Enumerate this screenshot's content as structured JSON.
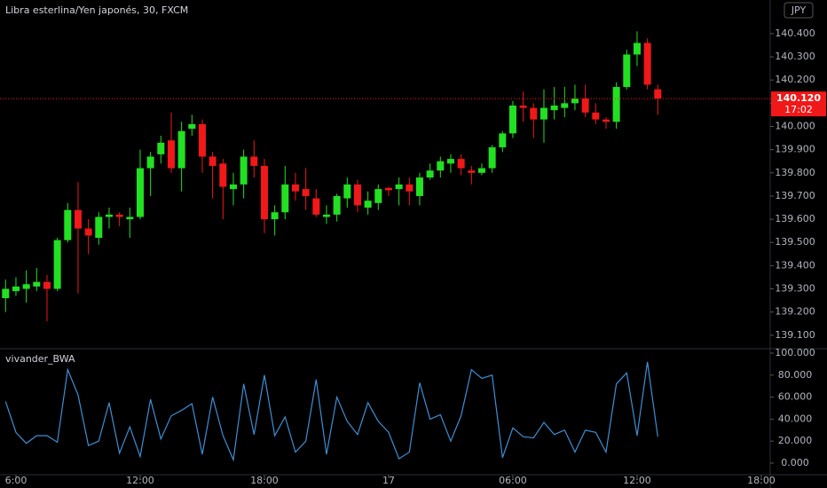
{
  "chart_data": [
    {
      "type": "candlestick",
      "title": "Libra esterlina/Yen japonés, 30, FXCM",
      "x": [
        5.5,
        6,
        6.5,
        7,
        7.5,
        8,
        8.5,
        9,
        9.5,
        10,
        10.5,
        11,
        11.5,
        12,
        12.5,
        13,
        13.5,
        14,
        14.5,
        15,
        15.5,
        16,
        16.5,
        17,
        17.5,
        18,
        18.5,
        19,
        19.5,
        20,
        20.5,
        21,
        21.5,
        22,
        22.5,
        23,
        23.5,
        24,
        24.5,
        25,
        25.5,
        26,
        26.5,
        27,
        27.5,
        28,
        28.5,
        29,
        29.5,
        30,
        30.5,
        31,
        31.5,
        32,
        32.5,
        33,
        33.5,
        34,
        34.5,
        35,
        35.5,
        36,
        36.5,
        37
      ],
      "open": [
        139.26,
        139.29,
        139.3,
        139.31,
        139.33,
        139.3,
        139.51,
        139.64,
        139.56,
        139.52,
        139.61,
        139.62,
        139.6,
        139.61,
        139.82,
        139.88,
        139.94,
        139.82,
        139.99,
        140.01,
        139.87,
        139.84,
        139.73,
        139.75,
        139.87,
        139.83,
        139.6,
        139.63,
        139.75,
        139.73,
        139.69,
        139.61,
        139.62,
        139.69,
        139.75,
        139.65,
        139.67,
        139.735,
        139.73,
        139.75,
        139.7,
        139.78,
        139.81,
        139.84,
        139.86,
        139.81,
        139.8,
        139.82,
        139.91,
        139.97,
        140.09,
        140.08,
        140.03,
        140.07,
        140.08,
        140.1,
        140.12,
        140.06,
        140.03,
        140.02,
        140.17,
        140.31,
        140.36,
        140.16
      ],
      "high": [
        139.34,
        139.35,
        139.38,
        139.39,
        139.36,
        139.52,
        139.67,
        139.76,
        139.6,
        139.63,
        139.65,
        139.63,
        139.65,
        139.9,
        139.89,
        139.96,
        140.06,
        140.02,
        140.05,
        140.03,
        139.89,
        139.86,
        139.8,
        139.9,
        139.94,
        139.86,
        139.66,
        139.83,
        139.8,
        139.82,
        139.73,
        139.66,
        139.71,
        139.78,
        139.77,
        139.72,
        139.75,
        139.74,
        139.78,
        139.78,
        139.8,
        139.84,
        139.87,
        139.88,
        139.88,
        139.83,
        139.84,
        139.92,
        139.98,
        140.11,
        140.15,
        140.1,
        140.16,
        140.17,
        140.17,
        140.18,
        140.18,
        140.1,
        140.04,
        140.19,
        140.33,
        140.41,
        140.38,
        140.18
      ],
      "low": [
        139.2,
        139.27,
        139.24,
        139.29,
        139.16,
        139.29,
        139.5,
        139.28,
        139.45,
        139.49,
        139.56,
        139.57,
        139.52,
        139.6,
        139.7,
        139.84,
        139.8,
        139.72,
        139.96,
        139.8,
        139.69,
        139.6,
        139.66,
        139.69,
        139.78,
        139.54,
        139.53,
        139.6,
        139.68,
        139.64,
        139.61,
        139.58,
        139.59,
        139.65,
        139.63,
        139.62,
        139.64,
        139.7,
        139.66,
        139.66,
        139.66,
        139.77,
        139.78,
        139.8,
        139.79,
        139.75,
        139.79,
        139.8,
        139.89,
        139.95,
        140.02,
        139.95,
        139.93,
        140.03,
        140.04,
        140.07,
        140.04,
        140.01,
        139.99,
        139.99,
        140.16,
        140.26,
        140.16,
        140.05
      ],
      "close": [
        139.3,
        139.31,
        139.32,
        139.33,
        139.3,
        139.51,
        139.64,
        139.56,
        139.53,
        139.61,
        139.62,
        139.61,
        139.61,
        139.82,
        139.87,
        139.93,
        139.82,
        139.98,
        140.01,
        139.87,
        139.83,
        139.74,
        139.75,
        139.87,
        139.83,
        139.6,
        139.63,
        139.75,
        139.72,
        139.7,
        139.62,
        139.62,
        139.7,
        139.75,
        139.66,
        139.68,
        139.73,
        139.725,
        139.75,
        139.72,
        139.78,
        139.81,
        139.85,
        139.86,
        139.82,
        139.8,
        139.82,
        139.91,
        139.97,
        140.09,
        140.08,
        140.03,
        140.08,
        140.09,
        140.1,
        140.12,
        140.06,
        140.03,
        140.02,
        140.17,
        140.31,
        140.36,
        140.18,
        140.12
      ],
      "up_color": "#22e022",
      "down_color": "#f01818",
      "xlim": [
        5.23,
        42.43
      ],
      "ylim": [
        139.042,
        140.545
      ],
      "yticks": [
        {
          "value": 139.1,
          "label": "139.100"
        },
        {
          "value": 139.2,
          "label": "139.200"
        },
        {
          "value": 139.3,
          "label": "139.300"
        },
        {
          "value": 139.4,
          "label": "139.400"
        },
        {
          "value": 139.5,
          "label": "139.500"
        },
        {
          "value": 139.6,
          "label": "139.600"
        },
        {
          "value": 139.7,
          "label": "139.700"
        },
        {
          "value": 139.8,
          "label": "139.800"
        },
        {
          "value": 139.9,
          "label": "139.900"
        },
        {
          "value": 140,
          "label": "140.000"
        },
        {
          "value": 140.1,
          "label": "140.100"
        },
        {
          "value": 140.2,
          "label": "140.200"
        },
        {
          "value": 140.3,
          "label": "140.300"
        },
        {
          "value": 140.4,
          "label": "140.400"
        }
      ],
      "last_price": {
        "value": 140.12,
        "label": "140.120"
      },
      "countdown": "17:02",
      "currency": "JPY"
    },
    {
      "type": "line",
      "title": "vivander_BWA",
      "x": [
        5.5,
        6,
        6.5,
        7,
        7.5,
        8,
        8.5,
        9,
        9.5,
        10,
        10.5,
        11,
        11.5,
        12,
        12.5,
        13,
        13.5,
        14,
        14.5,
        15,
        15.5,
        16,
        16.5,
        17,
        17.5,
        18,
        18.5,
        19,
        19.5,
        20,
        20.5,
        21,
        21.5,
        22,
        22.5,
        23,
        23.5,
        24,
        24.5,
        25,
        25.5,
        26,
        26.5,
        27,
        27.5,
        28,
        28.5,
        29,
        29.5,
        30,
        30.5,
        31,
        31.5,
        32,
        32.5,
        33,
        33.5,
        34,
        34.5,
        35,
        35.5,
        36,
        36.5,
        37
      ],
      "values": [
        56,
        28,
        18,
        25,
        25,
        19,
        85,
        62,
        16,
        20,
        55,
        9,
        33,
        6,
        58,
        22,
        43,
        48,
        54,
        8,
        60,
        25,
        3,
        72,
        26,
        80,
        25,
        42,
        10,
        20,
        76,
        8,
        60,
        38,
        26,
        55,
        38,
        28,
        4,
        10,
        73,
        40,
        44,
        20,
        43,
        85,
        77,
        80,
        5,
        32,
        24,
        23,
        37,
        26,
        30,
        10,
        30,
        28,
        10,
        72,
        82,
        25,
        92,
        24
      ],
      "color": "#3d8fd6",
      "xlim": [
        5.23,
        42.43
      ],
      "ylim": [
        -10.5,
        104
      ],
      "yticks": [
        {
          "value": 0,
          "label": "0.000"
        },
        {
          "value": 20,
          "label": "20.000"
        },
        {
          "value": 40,
          "label": "40.000"
        },
        {
          "value": 60,
          "label": "60.000"
        },
        {
          "value": 80,
          "label": "80.000"
        },
        {
          "value": 100,
          "label": "100.000"
        }
      ],
      "xticks": [
        {
          "value": 6,
          "label": "6:00"
        },
        {
          "value": 12,
          "label": "12:00"
        },
        {
          "value": 18,
          "label": "18:00"
        },
        {
          "value": 24,
          "label": "17"
        },
        {
          "value": 30,
          "label": "06:00"
        },
        {
          "value": 36,
          "label": "12:00"
        },
        {
          "value": 42,
          "label": "18:00"
        }
      ]
    }
  ]
}
